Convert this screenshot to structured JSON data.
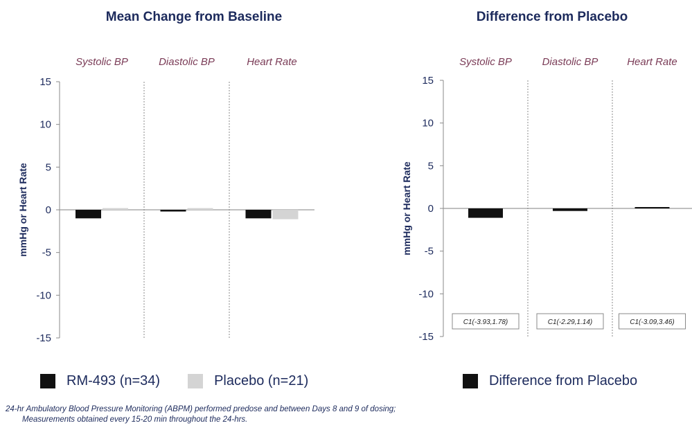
{
  "colors": {
    "rm493": "#111111",
    "placebo": "#d4d4d4",
    "difference": "#111111",
    "title": "#1c2a5c",
    "group": "#7a3b56"
  },
  "legend": {
    "rm493": "RM-493 (n=34)",
    "placebo": "Placebo (n=21)",
    "difference": "Difference from Placebo"
  },
  "footnote": {
    "line1": "24-hr Ambulatory Blood Pressure Monitoring (ABPM) performed predose and between Days 8 and 9 of dosing;",
    "line2": "Measurements obtained every 15-20 min throughout the 24-hrs."
  },
  "chart_data": [
    {
      "type": "bar",
      "title": "Mean Change from Baseline",
      "ylabel": "mmHg or Heart Rate",
      "ylim": [
        -15,
        15
      ],
      "yticks": [
        15,
        10,
        5,
        0,
        -5,
        -10,
        -15
      ],
      "categories": [
        "Systolic BP",
        "Diastolic BP",
        "Heart Rate"
      ],
      "series": [
        {
          "name": "RM-493 (n=34)",
          "values": [
            -1.0,
            -0.2,
            -1.0
          ]
        },
        {
          "name": "Placebo (n=21)",
          "values": [
            0.2,
            0.2,
            -1.1
          ]
        }
      ]
    },
    {
      "type": "bar",
      "title": "Difference from Placebo",
      "ylabel": "mmHg or Heart Rate",
      "ylim": [
        -15,
        15
      ],
      "yticks": [
        15,
        10,
        5,
        0,
        -5,
        -10,
        -15
      ],
      "categories": [
        "Systolic BP",
        "Diastolic BP",
        "Heart Rate"
      ],
      "series": [
        {
          "name": "Difference from Placebo",
          "values": [
            -1.1,
            -0.3,
            0.1
          ]
        }
      ],
      "ci_labels": [
        "C1(-3.93,1.78)",
        "C1(-2.29,1.14)",
        "C1(-3.09,3.46)"
      ]
    }
  ]
}
